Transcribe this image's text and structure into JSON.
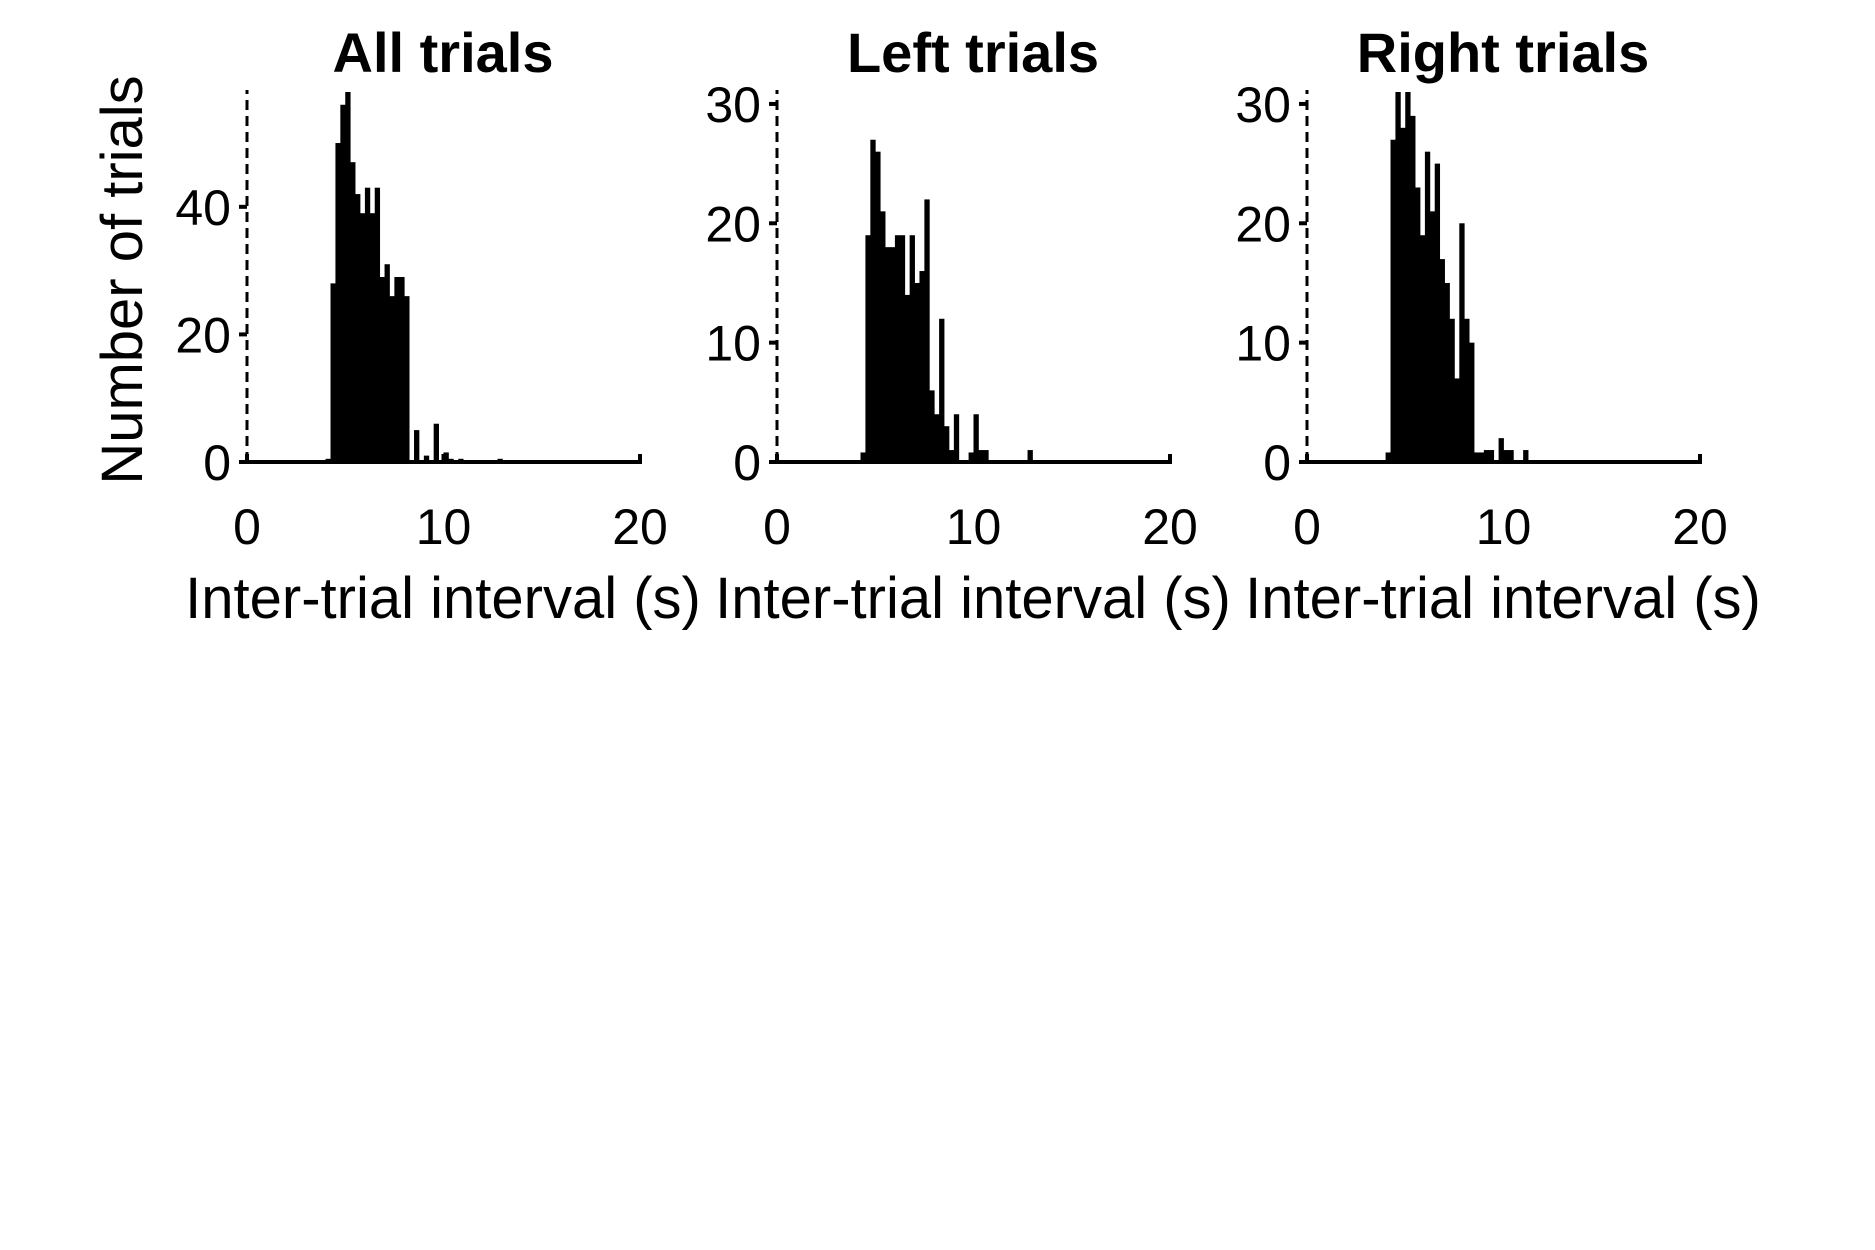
{
  "chart_data": [
    {
      "type": "bar",
      "title": "All trials",
      "xlabel": "Inter-trial interval (s)",
      "ylabel": "Number of trials",
      "xlim": [
        0,
        20
      ],
      "ylim": [
        0,
        58
      ],
      "xticks": [
        0,
        10,
        20
      ],
      "yticks": [
        0,
        20,
        40
      ],
      "bin_width": 0.25,
      "bins": [
        {
          "x": 4.0,
          "y": 0.5
        },
        {
          "x": 4.25,
          "y": 28
        },
        {
          "x": 4.5,
          "y": 50
        },
        {
          "x": 4.75,
          "y": 56
        },
        {
          "x": 5.0,
          "y": 58
        },
        {
          "x": 5.25,
          "y": 47
        },
        {
          "x": 5.5,
          "y": 42
        },
        {
          "x": 5.75,
          "y": 39
        },
        {
          "x": 6.0,
          "y": 43
        },
        {
          "x": 6.25,
          "y": 39
        },
        {
          "x": 6.5,
          "y": 43
        },
        {
          "x": 6.75,
          "y": 29
        },
        {
          "x": 7.0,
          "y": 31
        },
        {
          "x": 7.25,
          "y": 26
        },
        {
          "x": 7.5,
          "y": 29
        },
        {
          "x": 7.75,
          "y": 29
        },
        {
          "x": 8.0,
          "y": 26
        },
        {
          "x": 8.5,
          "y": 5
        },
        {
          "x": 9.0,
          "y": 1
        },
        {
          "x": 9.5,
          "y": 6
        },
        {
          "x": 10.0,
          "y": 1.5
        },
        {
          "x": 10.25,
          "y": 0.5
        },
        {
          "x": 10.75,
          "y": 0.5
        },
        {
          "x": 12.75,
          "y": 0.5
        }
      ]
    },
    {
      "type": "bar",
      "title": "Left trials",
      "xlabel": "Inter-trial interval (s)",
      "ylabel": "",
      "xlim": [
        0,
        20
      ],
      "ylim": [
        0,
        31
      ],
      "xticks": [
        0,
        10,
        20
      ],
      "yticks": [
        0,
        10,
        20,
        30
      ],
      "bin_width": 0.25,
      "bins": [
        {
          "x": 4.25,
          "y": 0.8
        },
        {
          "x": 4.5,
          "y": 19
        },
        {
          "x": 4.75,
          "y": 27
        },
        {
          "x": 5.0,
          "y": 26
        },
        {
          "x": 5.25,
          "y": 21
        },
        {
          "x": 5.5,
          "y": 18
        },
        {
          "x": 5.75,
          "y": 18
        },
        {
          "x": 6.0,
          "y": 19
        },
        {
          "x": 6.25,
          "y": 19
        },
        {
          "x": 6.5,
          "y": 14
        },
        {
          "x": 6.75,
          "y": 19
        },
        {
          "x": 7.0,
          "y": 15
        },
        {
          "x": 7.25,
          "y": 16
        },
        {
          "x": 7.5,
          "y": 22
        },
        {
          "x": 7.75,
          "y": 6
        },
        {
          "x": 8.0,
          "y": 4
        },
        {
          "x": 8.25,
          "y": 12
        },
        {
          "x": 8.5,
          "y": 3
        },
        {
          "x": 8.75,
          "y": 1
        },
        {
          "x": 9.0,
          "y": 4
        },
        {
          "x": 9.75,
          "y": 0.8
        },
        {
          "x": 10.0,
          "y": 4
        },
        {
          "x": 10.25,
          "y": 1
        },
        {
          "x": 10.5,
          "y": 1
        },
        {
          "x": 12.75,
          "y": 1
        }
      ]
    },
    {
      "type": "bar",
      "title": "Right trials",
      "xlabel": "Inter-trial interval (s)",
      "ylabel": "",
      "xlim": [
        0,
        20
      ],
      "ylim": [
        0,
        31
      ],
      "xticks": [
        0,
        10,
        20
      ],
      "yticks": [
        0,
        10,
        20,
        30
      ],
      "bin_width": 0.25,
      "bins": [
        {
          "x": 4.0,
          "y": 0.8
        },
        {
          "x": 4.25,
          "y": 27
        },
        {
          "x": 4.5,
          "y": 31
        },
        {
          "x": 4.75,
          "y": 28
        },
        {
          "x": 5.0,
          "y": 31
        },
        {
          "x": 5.25,
          "y": 29
        },
        {
          "x": 5.5,
          "y": 23
        },
        {
          "x": 5.75,
          "y": 19
        },
        {
          "x": 6.0,
          "y": 26
        },
        {
          "x": 6.25,
          "y": 21
        },
        {
          "x": 6.5,
          "y": 25
        },
        {
          "x": 6.75,
          "y": 17
        },
        {
          "x": 7.0,
          "y": 15
        },
        {
          "x": 7.25,
          "y": 12
        },
        {
          "x": 7.5,
          "y": 7
        },
        {
          "x": 7.75,
          "y": 20
        },
        {
          "x": 8.0,
          "y": 12
        },
        {
          "x": 8.25,
          "y": 10
        },
        {
          "x": 8.5,
          "y": 0.8
        },
        {
          "x": 8.75,
          "y": 0.8
        },
        {
          "x": 9.0,
          "y": 1
        },
        {
          "x": 9.25,
          "y": 1
        },
        {
          "x": 9.75,
          "y": 2
        },
        {
          "x": 10.0,
          "y": 1
        },
        {
          "x": 10.25,
          "y": 1
        },
        {
          "x": 11.0,
          "y": 1
        }
      ]
    }
  ]
}
